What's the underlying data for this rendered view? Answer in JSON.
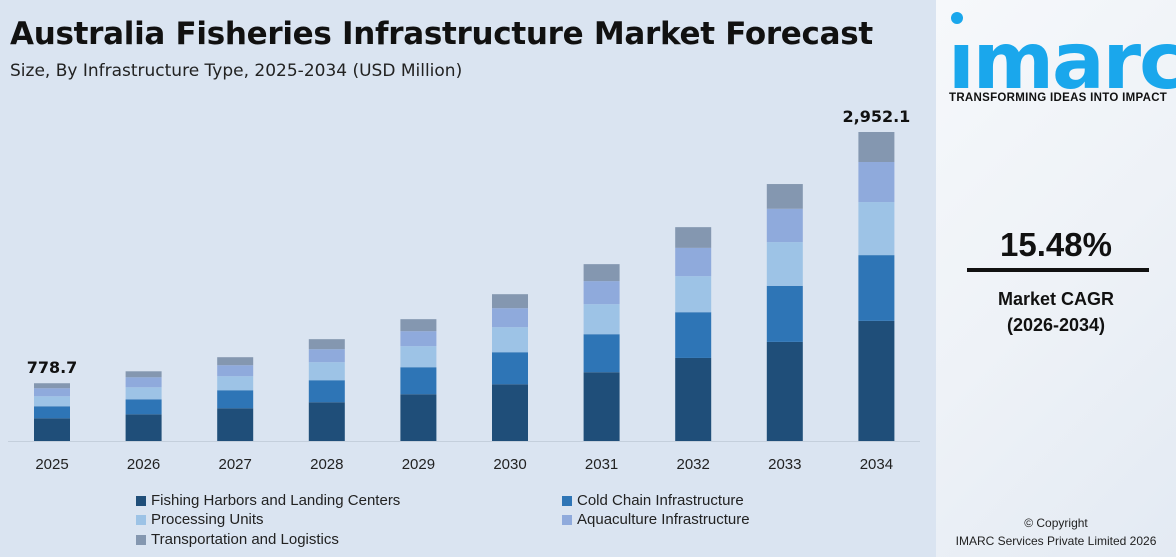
{
  "title": "Australia Fisheries Infrastructure Market Forecast",
  "subtitle": "Size, By Infrastructure Type, 2025-2034 (USD Million)",
  "chart_data": {
    "type": "bar",
    "stacked": true,
    "categories": [
      "2025",
      "2026",
      "2027",
      "2028",
      "2029",
      "2030",
      "2031",
      "2032",
      "2033",
      "2034"
    ],
    "series": [
      {
        "name": "Fishing Harbors and Landing Centers",
        "color": "#1f4e79",
        "values": [
          306.2,
          337.9,
          392.2,
          441.4,
          511.5,
          598.7,
          703.3,
          826.9,
          964.9,
          1147.6
        ]
      },
      {
        "name": "Cold Chain Infrastructure",
        "color": "#2e75b6",
        "values": [
          161.9,
          189.8,
          215.9,
          250.9,
          295.7,
          337.9,
          389.0,
          455.3,
          545.8,
          628.3
        ]
      },
      {
        "name": "Processing Units",
        "color": "#9dc3e6",
        "values": [
          135.0,
          151.9,
          167.9,
          205.3,
          230.0,
          264.0,
          307.1,
          358.6,
          425.9,
          506.8
        ]
      },
      {
        "name": "Aquaculture Infrastructure",
        "color": "#8faadc",
        "values": [
          108.0,
          126.5,
          131.9,
          148.3,
          164.3,
          200.6,
          235.5,
          281.9,
          324.6,
          382.5
        ]
      },
      {
        "name": "Transportation and Logistics",
        "color": "#8497b0",
        "values": [
          67.6,
          75.9,
          96.0,
          114.1,
          131.4,
          147.8,
          174.0,
          206.2,
          240.7,
          286.9
        ]
      }
    ],
    "data_labels": [
      {
        "category": "2025",
        "text": "778.7"
      },
      {
        "category": "2034",
        "text": "2,952.1"
      }
    ],
    "legend_position": "bottom",
    "grid": false
  },
  "side": {
    "logo_text": "imarc",
    "tagline": "TRANSFORMING IDEAS INTO IMPACT",
    "cagr_value": "15.48%",
    "cagr_label": "Market CAGR",
    "cagr_period": "(2026-2034)",
    "copyright": "© Copyright",
    "company": "IMARC Services Private Limited 2026",
    "brand_color": "#1aa7ec"
  }
}
